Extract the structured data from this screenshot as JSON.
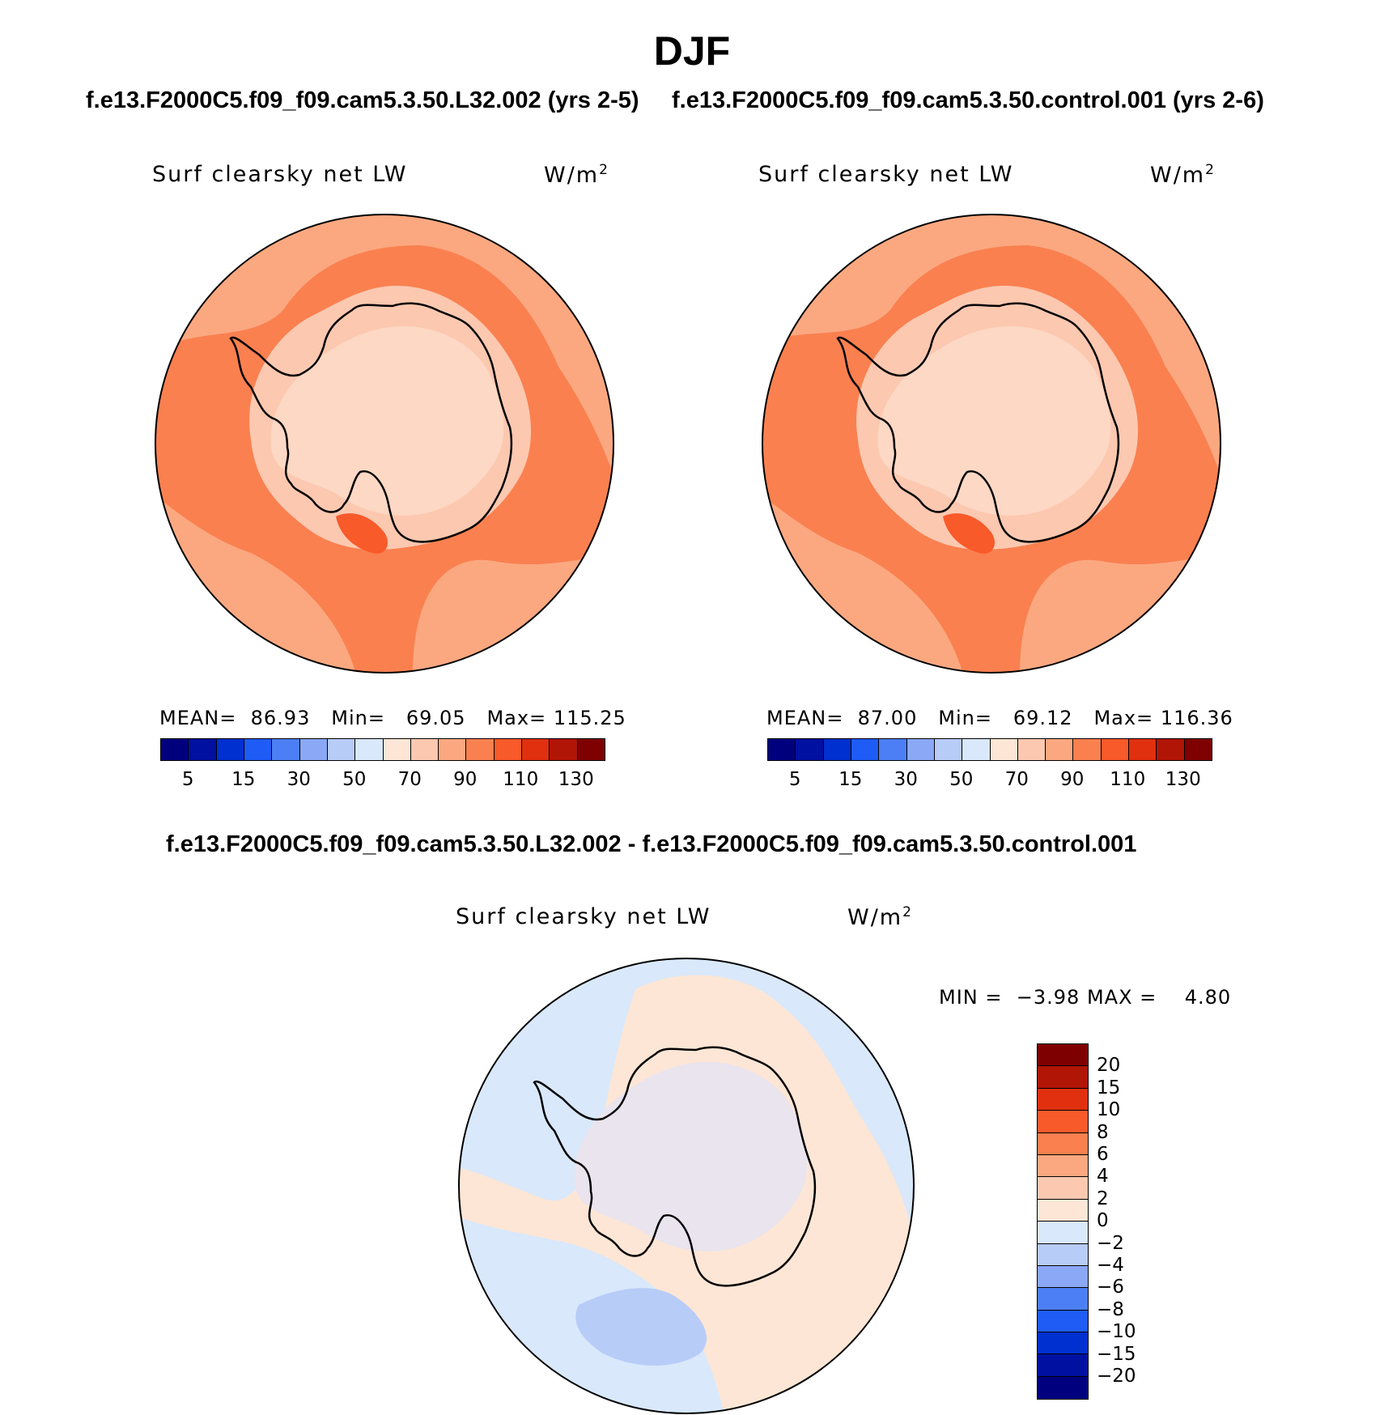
{
  "title": "DJF",
  "panels": [
    {
      "case_title": "f.e13.F2000C5.f09_f09.cam5.3.50.L32.002 (yrs 2-5)",
      "variable": "Surf clearsky net LW",
      "units": "W/m",
      "units_sup": "2",
      "stats": {
        "mean_label": "MEAN=",
        "mean": "86.93",
        "min_label": "Min=",
        "min": "69.05",
        "max_label": "Max=",
        "max": "115.25"
      }
    },
    {
      "case_title": "f.e13.F2000C5.f09_f09.cam5.3.50.control.001 (yrs 2-6)",
      "variable": "Surf clearsky net LW",
      "units": "W/m",
      "units_sup": "2",
      "stats": {
        "mean_label": "MEAN=",
        "mean": "87.00",
        "min_label": "Min=",
        "min": "69.12",
        "max_label": "Max=",
        "max": "116.36"
      }
    }
  ],
  "diff_panel": {
    "case_title": "f.e13.F2000C5.f09_f09.cam5.3.50.L32.002 - f.e13.F2000C5.f09_f09.cam5.3.50.control.001",
    "variable": "Surf clearsky net LW",
    "units": "W/m",
    "units_sup": "2",
    "minmax": {
      "min_label": "MIN =",
      "min": "−3.98",
      "max_label": "MAX =",
      "max": "4.80"
    }
  },
  "chart_data": [
    {
      "type": "heatmap",
      "projection": "south polar stereographic",
      "colorbar": {
        "orientation": "horizontal",
        "colors": [
          "#00007f",
          "#0010a0",
          "#0030d0",
          "#1f5cf5",
          "#4c7ff5",
          "#8aa8f5",
          "#b8ccf8",
          "#d9e8fb",
          "#fde6d5",
          "#fcc8b0",
          "#fba880",
          "#fa8050",
          "#f85a2a",
          "#e03010",
          "#b01505",
          "#7f0000"
        ],
        "tick_labels": [
          "5",
          "15",
          "30",
          "50",
          "70",
          "90",
          "110",
          "130"
        ]
      },
      "stats": {
        "mean": 86.93,
        "min": 69.05,
        "max": 115.25
      }
    },
    {
      "type": "heatmap",
      "projection": "south polar stereographic",
      "colorbar": {
        "orientation": "horizontal",
        "colors": [
          "#00007f",
          "#0010a0",
          "#0030d0",
          "#1f5cf5",
          "#4c7ff5",
          "#8aa8f5",
          "#b8ccf8",
          "#d9e8fb",
          "#fde6d5",
          "#fcc8b0",
          "#fba880",
          "#fa8050",
          "#f85a2a",
          "#e03010",
          "#b01505",
          "#7f0000"
        ],
        "tick_labels": [
          "5",
          "15",
          "30",
          "50",
          "70",
          "90",
          "110",
          "130"
        ]
      },
      "stats": {
        "mean": 87.0,
        "min": 69.12,
        "max": 116.36
      }
    },
    {
      "type": "heatmap",
      "projection": "south polar stereographic",
      "colorbar": {
        "orientation": "vertical",
        "colors_top_to_bottom": [
          "#7f0000",
          "#b01505",
          "#e03010",
          "#f85a2a",
          "#fa8050",
          "#fba880",
          "#fcc8b0",
          "#fde6d5",
          "#d9e8fb",
          "#b8ccf8",
          "#8aa8f5",
          "#4c7ff5",
          "#1f5cf5",
          "#0030d0",
          "#0010a0",
          "#00007f"
        ],
        "tick_labels": [
          "20",
          "15",
          "10",
          "8",
          "6",
          "4",
          "2",
          "0",
          "−2",
          "−4",
          "−6",
          "−8",
          "−10",
          "−15",
          "−20"
        ]
      },
      "stats": {
        "min": -3.98,
        "max": 4.8
      }
    }
  ]
}
